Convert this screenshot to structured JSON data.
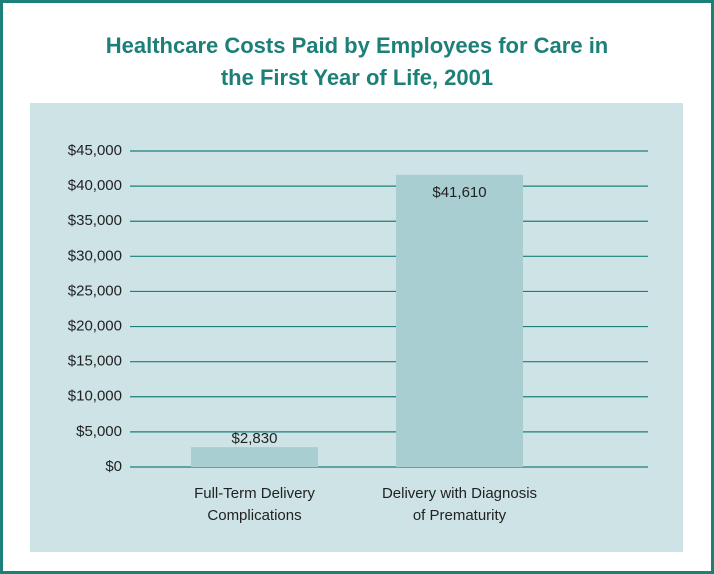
{
  "chart_data": {
    "type": "bar",
    "title": "Healthcare Costs Paid by Employees for Care in the First Year of Life, 2001",
    "categories": [
      "Full-Term Delivery Complications",
      "Delivery with Diagnosis of Prematurity"
    ],
    "values": [
      2830,
      41610
    ],
    "value_labels": [
      "$2,830",
      "$41,610"
    ],
    "color": "#a8ced2",
    "ylim": [
      0,
      45000
    ],
    "yticks": [
      {
        "value": 0,
        "label": "$0"
      },
      {
        "value": 5000,
        "label": "$5,000"
      },
      {
        "value": 10000,
        "label": "$10,000"
      },
      {
        "value": 15000,
        "label": "$15,000"
      },
      {
        "value": 20000,
        "label": "$20,000"
      },
      {
        "value": 25000,
        "label": "$25,000"
      },
      {
        "value": 30000,
        "label": "$30,000"
      },
      {
        "value": 35000,
        "label": "$35,000"
      },
      {
        "value": 40000,
        "label": "$40,000"
      },
      {
        "value": 45000,
        "label": "$45,000"
      }
    ],
    "grid": true
  }
}
